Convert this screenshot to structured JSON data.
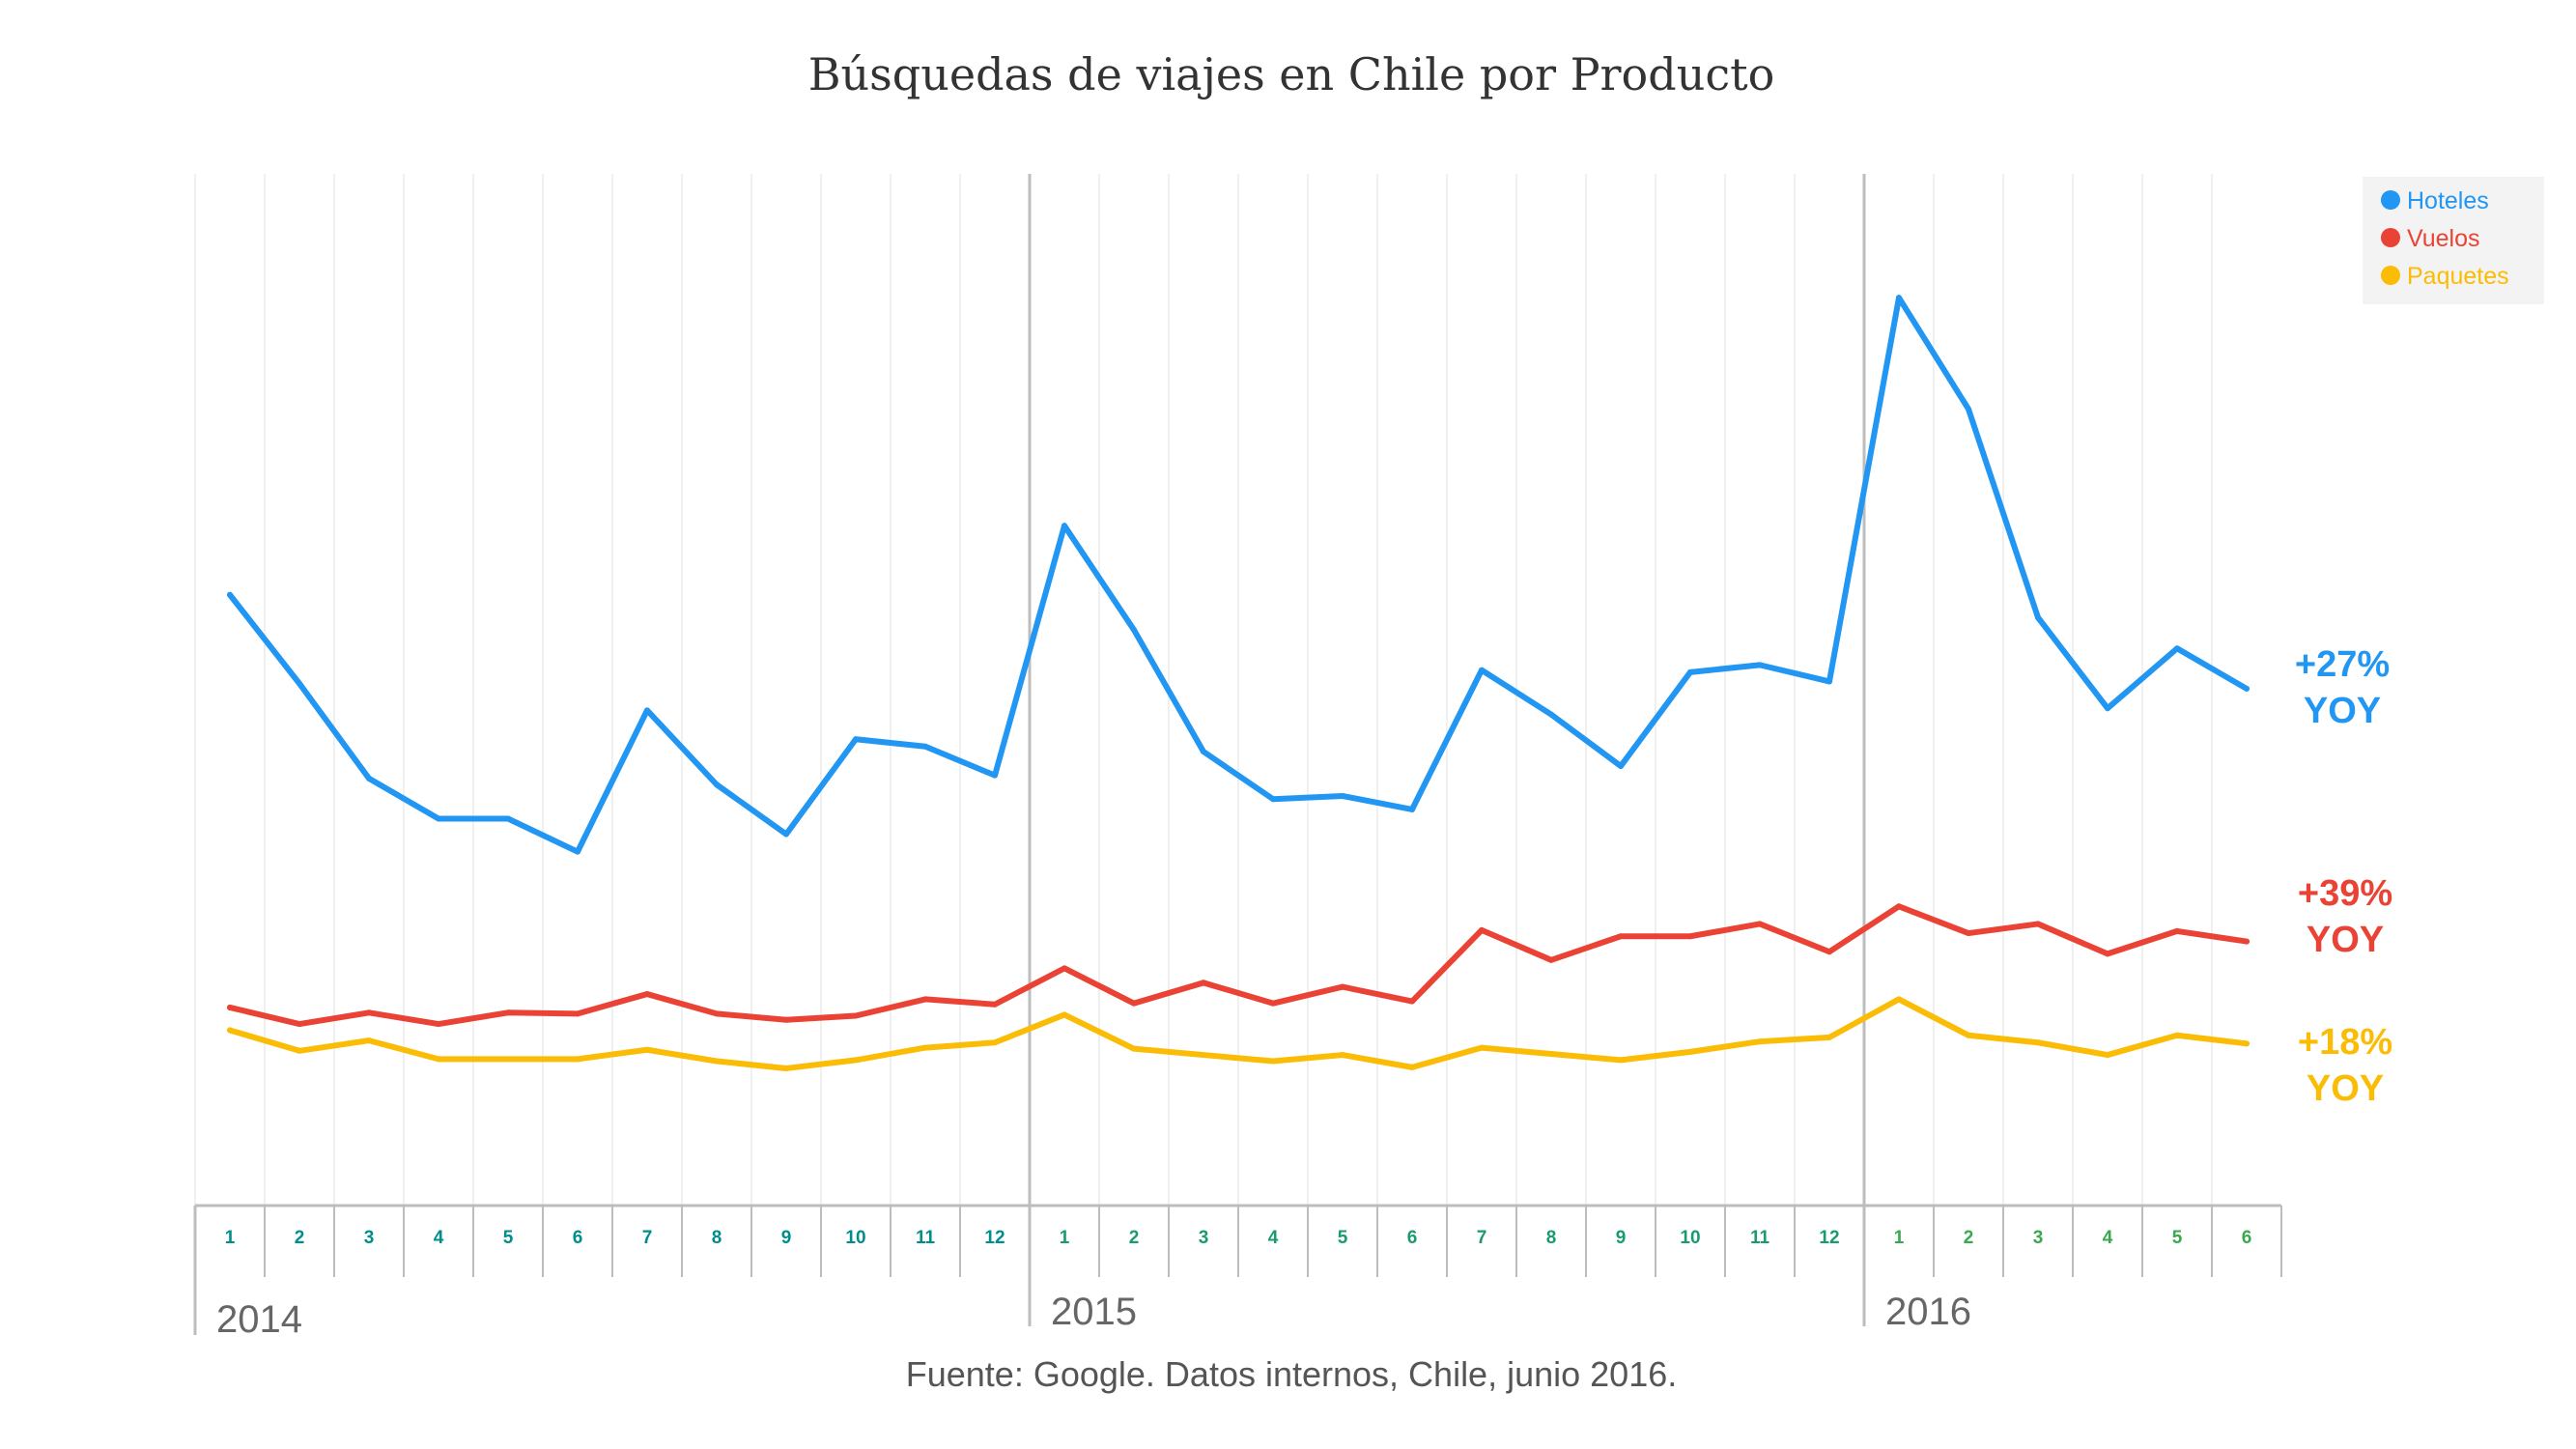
{
  "chart_data": {
    "type": "line",
    "title": "Búsquedas de viajes en Chile por Producto",
    "xlabel": "",
    "ylabel": "",
    "ylim": [
      0,
      100
    ],
    "grid": true,
    "legend_position": "top-right",
    "years": [
      {
        "label": "2014",
        "months": [
          "1",
          "2",
          "3",
          "4",
          "5",
          "6",
          "7",
          "8",
          "9",
          "10",
          "11",
          "12"
        ]
      },
      {
        "label": "2015",
        "months": [
          "1",
          "2",
          "3",
          "4",
          "5",
          "6",
          "7",
          "8",
          "9",
          "10",
          "11",
          "12"
        ]
      },
      {
        "label": "2016",
        "months": [
          "1",
          "2",
          "3",
          "4",
          "5",
          "6"
        ]
      }
    ],
    "x": [
      "2014-01",
      "2014-02",
      "2014-03",
      "2014-04",
      "2014-05",
      "2014-06",
      "2014-07",
      "2014-08",
      "2014-09",
      "2014-10",
      "2014-11",
      "2014-12",
      "2015-01",
      "2015-02",
      "2015-03",
      "2015-04",
      "2015-05",
      "2015-06",
      "2015-07",
      "2015-08",
      "2015-09",
      "2015-10",
      "2015-11",
      "2015-12",
      "2016-01",
      "2016-02",
      "2016-03",
      "2016-04",
      "2016-05",
      "2016-06"
    ],
    "series": [
      {
        "name": "Hoteles",
        "color": "#2196f3",
        "annotation": [
          "+27%",
          "YOY"
        ],
        "values": [
          59.2,
          50.6,
          41.4,
          37.5,
          37.5,
          34.3,
          48.0,
          40.8,
          36.0,
          45.2,
          44.5,
          41.7,
          65.9,
          55.8,
          44.0,
          39.4,
          39.7,
          38.4,
          51.9,
          47.6,
          42.6,
          51.7,
          52.4,
          50.8,
          88.0,
          77.2,
          57.0,
          48.2,
          54.0,
          50.1
        ]
      },
      {
        "name": "Vuelos",
        "color": "#ea4335",
        "annotation": [
          "+39%",
          "YOY"
        ],
        "values": [
          19.2,
          17.6,
          18.7,
          17.6,
          18.7,
          18.6,
          20.5,
          18.6,
          18.0,
          18.4,
          20.0,
          19.5,
          23.0,
          19.6,
          21.6,
          19.6,
          21.2,
          19.8,
          26.7,
          23.8,
          26.1,
          26.1,
          27.3,
          24.6,
          29.0,
          26.4,
          27.3,
          24.4,
          26.6,
          25.6
        ]
      },
      {
        "name": "Paquetes",
        "color": "#fbbc05",
        "annotation": [
          "+18%",
          "YOY"
        ],
        "values": [
          17.0,
          15.0,
          16.0,
          14.2,
          14.2,
          14.2,
          15.1,
          14.0,
          13.3,
          14.1,
          15.3,
          15.8,
          18.5,
          15.2,
          14.6,
          14.0,
          14.6,
          13.4,
          15.3,
          14.7,
          14.1,
          14.9,
          15.9,
          16.3,
          20.0,
          16.5,
          15.8,
          14.6,
          16.5,
          15.7
        ]
      }
    ],
    "source": "Fuente: Google. Datos internos, Chile, junio 2016."
  }
}
